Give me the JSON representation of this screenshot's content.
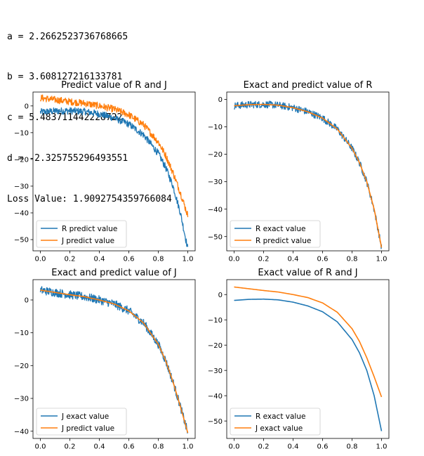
{
  "output_lines": [
    "a = 2.2662523736768665",
    "b = 3.608127216133781",
    "c = 5.483711442228722",
    "d = -2.325755296493551",
    "Loss Value: 1.9092754359766084"
  ],
  "colors": {
    "blue": "#1f77b4",
    "orange": "#ff7f0e"
  },
  "chart_data": [
    {
      "type": "line",
      "title": "Predict value of R and J",
      "xlim": [
        -0.05,
        1.05
      ],
      "ylim": [
        -54.2,
        5.2
      ],
      "xticks": [
        0.0,
        0.2,
        0.4,
        0.6,
        0.8,
        1.0
      ],
      "xtick_labels": [
        "0.0",
        "0.2",
        "0.4",
        "0.6",
        "0.8",
        "1.0"
      ],
      "yticks": [
        0,
        -10,
        -20,
        -30,
        -40,
        -50
      ],
      "ytick_labels": [
        "0",
        "−10",
        "−20",
        "−30",
        "−40",
        "−50"
      ],
      "legend_placement": "lower-left",
      "series": [
        {
          "name": "R predict value",
          "color": "#1f77b4",
          "noisy": true,
          "x": [
            0,
            0.1,
            0.2,
            0.3,
            0.4,
            0.5,
            0.6,
            0.7,
            0.8,
            0.85,
            0.9,
            0.95,
            1.0
          ],
          "y": [
            -2.3,
            -1.9,
            -1.8,
            -2.1,
            -3,
            -4.5,
            -6.8,
            -10.8,
            -17.8,
            -23,
            -30,
            -40,
            -53.5
          ]
        },
        {
          "name": "J predict value",
          "color": "#ff7f0e",
          "noisy": true,
          "x": [
            0,
            0.1,
            0.2,
            0.3,
            0.4,
            0.5,
            0.6,
            0.7,
            0.8,
            0.85,
            0.9,
            0.95,
            1.0
          ],
          "y": [
            3,
            2.3,
            1.6,
            1,
            0,
            -1.2,
            -3.3,
            -7,
            -13.5,
            -18.5,
            -25,
            -32.5,
            -41
          ]
        }
      ]
    },
    {
      "type": "line",
      "title": "Exact and predict value of R",
      "xlim": [
        -0.05,
        1.05
      ],
      "ylim": [
        -55.2,
        2.7
      ],
      "xticks": [
        0.0,
        0.2,
        0.4,
        0.6,
        0.8,
        1.0
      ],
      "xtick_labels": [
        "0.0",
        "0.2",
        "0.4",
        "0.6",
        "0.8",
        "1.0"
      ],
      "yticks": [
        0,
        -10,
        -20,
        -30,
        -40,
        -50
      ],
      "ytick_labels": [
        "0",
        "−10",
        "−20",
        "−30",
        "−40",
        "−50"
      ],
      "legend_placement": "lower-left",
      "series": [
        {
          "name": "R exact value",
          "color": "#1f77b4",
          "noisy": true,
          "x": [
            0,
            0.1,
            0.2,
            0.3,
            0.4,
            0.5,
            0.6,
            0.7,
            0.8,
            0.85,
            0.9,
            0.95,
            1.0
          ],
          "y": [
            -2.3,
            -1.9,
            -1.8,
            -2.1,
            -3,
            -4.5,
            -6.8,
            -10.8,
            -17.8,
            -23,
            -30,
            -40,
            -54
          ]
        },
        {
          "name": "R predict value",
          "color": "#ff7f0e",
          "noisy": false,
          "x": [
            0,
            0.1,
            0.2,
            0.3,
            0.4,
            0.5,
            0.6,
            0.7,
            0.8,
            0.85,
            0.9,
            0.95,
            1.0
          ],
          "y": [
            -2.3,
            -1.9,
            -1.8,
            -2.1,
            -3,
            -4.5,
            -6.8,
            -10.8,
            -17.8,
            -23,
            -30,
            -40,
            -54
          ]
        }
      ]
    },
    {
      "type": "line",
      "title": "Exact and predict value of J",
      "xlim": [
        -0.05,
        1.05
      ],
      "ylim": [
        -42.2,
        6.2
      ],
      "xticks": [
        0.0,
        0.2,
        0.4,
        0.6,
        0.8,
        1.0
      ],
      "xtick_labels": [
        "0.0",
        "0.2",
        "0.4",
        "0.6",
        "0.8",
        "1.0"
      ],
      "yticks": [
        0,
        -10,
        -20,
        -30,
        -40
      ],
      "ytick_labels": [
        "0",
        "−10",
        "−20",
        "−30",
        "−40"
      ],
      "legend_placement": "lower-left",
      "series": [
        {
          "name": "J exact value",
          "color": "#1f77b4",
          "noisy": true,
          "x": [
            0,
            0.1,
            0.2,
            0.3,
            0.4,
            0.5,
            0.6,
            0.7,
            0.8,
            0.85,
            0.9,
            0.95,
            1.0
          ],
          "y": [
            3,
            2.3,
            1.6,
            1,
            0,
            -1.2,
            -3.3,
            -7,
            -13.5,
            -18.5,
            -25,
            -32.5,
            -40.5
          ]
        },
        {
          "name": "J predict value",
          "color": "#ff7f0e",
          "noisy": false,
          "x": [
            0,
            0.1,
            0.2,
            0.3,
            0.4,
            0.5,
            0.6,
            0.7,
            0.8,
            0.85,
            0.9,
            0.95,
            1.0
          ],
          "y": [
            3,
            2.3,
            1.6,
            1,
            0,
            -1.2,
            -3.3,
            -7,
            -13.5,
            -18.5,
            -25,
            -32.5,
            -40.5
          ]
        }
      ]
    },
    {
      "type": "line",
      "title": "Exact value of R and J",
      "xlim": [
        -0.05,
        1.05
      ],
      "ylim": [
        -56.9,
        5.9
      ],
      "xticks": [
        0.0,
        0.2,
        0.4,
        0.6,
        0.8,
        1.0
      ],
      "xtick_labels": [
        "0.0",
        "0.2",
        "0.4",
        "0.6",
        "0.8",
        "1.0"
      ],
      "yticks": [
        0,
        -10,
        -20,
        -30,
        -40,
        -50
      ],
      "ytick_labels": [
        "0",
        "−10",
        "−20",
        "−30",
        "−40",
        "−50"
      ],
      "legend_placement": "lower-left",
      "series": [
        {
          "name": "R exact value",
          "color": "#1f77b4",
          "noisy": false,
          "x": [
            0,
            0.1,
            0.2,
            0.3,
            0.4,
            0.5,
            0.6,
            0.7,
            0.8,
            0.85,
            0.9,
            0.95,
            1.0
          ],
          "y": [
            -2.3,
            -1.9,
            -1.8,
            -2.1,
            -3,
            -4.5,
            -6.8,
            -10.8,
            -17.8,
            -23,
            -30,
            -40,
            -54
          ]
        },
        {
          "name": "J exact value",
          "color": "#ff7f0e",
          "noisy": false,
          "x": [
            0,
            0.1,
            0.2,
            0.3,
            0.4,
            0.5,
            0.6,
            0.7,
            0.8,
            0.85,
            0.9,
            0.95,
            1.0
          ],
          "y": [
            3,
            2.3,
            1.6,
            1,
            0,
            -1.2,
            -3.3,
            -7,
            -13.5,
            -18.5,
            -25,
            -32.5,
            -40.5
          ]
        }
      ]
    }
  ]
}
